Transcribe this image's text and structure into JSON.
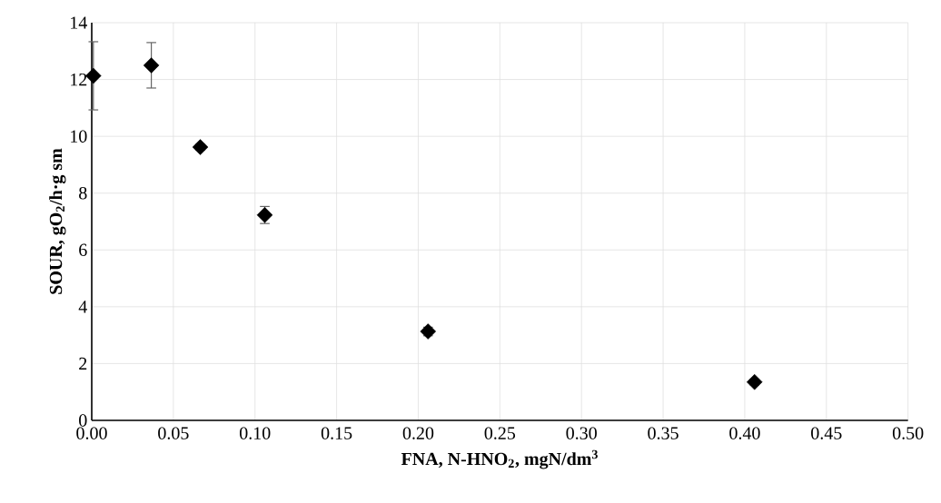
{
  "chart_data": {
    "type": "scatter",
    "xlabel": "FNA, N-HNO$_{2}$, mgN/dm$^{3}$",
    "ylabel": "SOUR, gO$_{2}$/h·g sm",
    "x": [
      0.001,
      0.0365,
      0.0665,
      0.106,
      0.206,
      0.406
    ],
    "series": [
      {
        "color": "#000000",
        "values": [
          12.13,
          12.5,
          9.62,
          7.23,
          3.13,
          1.35
        ],
        "errors": [
          1.2,
          0.8,
          0.1,
          0.3,
          0.15,
          0.1
        ]
      }
    ],
    "xlim": [
      0,
      0.5
    ],
    "xticks": [
      {
        "value": 0,
        "label": "0.00"
      },
      {
        "value": 0.05,
        "label": "0.05"
      },
      {
        "value": 0.1,
        "label": "0.10"
      },
      {
        "value": 0.15,
        "label": "0.15"
      },
      {
        "value": 0.2,
        "label": "0.20"
      },
      {
        "value": 0.25,
        "label": "0.25"
      },
      {
        "value": 0.3,
        "label": "0.30"
      },
      {
        "value": 0.35,
        "label": "0.35"
      },
      {
        "value": 0.4,
        "label": "0.40"
      },
      {
        "value": 0.45,
        "label": "0.45"
      },
      {
        "value": 0.5,
        "label": "0.50"
      }
    ],
    "ylim": [
      0,
      14
    ],
    "yticks": [
      0,
      2,
      4,
      6,
      8,
      10,
      12,
      14
    ],
    "grid": true,
    "marker": "diamond"
  }
}
